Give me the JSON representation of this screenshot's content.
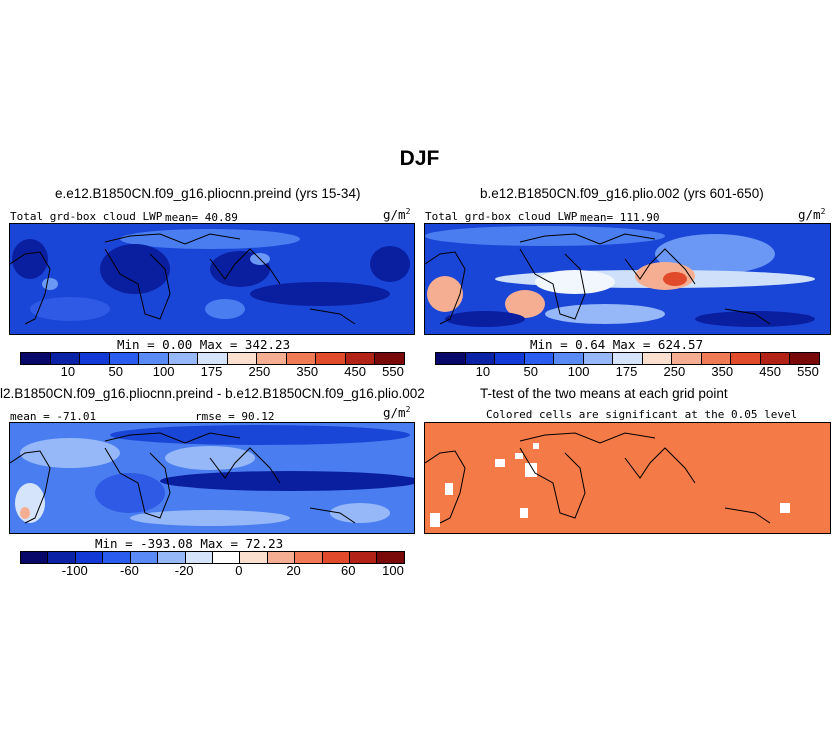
{
  "title": "DJF",
  "panels": {
    "p1": {
      "title": "e.e12.B1850CN.f09_g16.pliocnn.preind (yrs 15-34)",
      "label": "Total grd-box cloud LWP",
      "mean": "mean=  40.89",
      "units": "g/m",
      "units_sup": "2",
      "minmax": "Min =   0.00 Max = 342.23"
    },
    "p2": {
      "title": "b.e12.B1850CN.f09_g16.plio.002 (yrs 601-650)",
      "label": "Total grd-box cloud LWP",
      "mean": "mean= 111.90",
      "units": "g/m",
      "units_sup": "2",
      "minmax": "Min =   0.64 Max = 624.57"
    },
    "p3": {
      "title": "l2.B1850CN.f09_g16.pliocnn.preind - b.e12.B1850CN.f09_g16.plio.002",
      "mean": "mean = -71.01",
      "rmse": "rmse =  90.12",
      "units": "g/m",
      "units_sup": "2",
      "minmax": "Min = -393.08 Max =  72.23"
    },
    "p4": {
      "title": "T-test of the two means at each grid point",
      "subtitle": "Colored cells are significant at the 0.05 level"
    }
  },
  "colorbars": {
    "abs": {
      "colors": [
        "#08086b",
        "#0a22a5",
        "#1238d6",
        "#2a5cf0",
        "#5a8af5",
        "#96b8f8",
        "#d5e4fb",
        "#fbe0d0",
        "#f6ae92",
        "#f07a56",
        "#e14a2a",
        "#b32216",
        "#7a0a0a"
      ],
      "ticks": [
        "10",
        "50",
        "100",
        "175",
        "250",
        "350",
        "450",
        "550"
      ]
    },
    "diff": {
      "colors": [
        "#08086b",
        "#0a22a5",
        "#1238d6",
        "#2a5cf0",
        "#5a8af5",
        "#96b8f8",
        "#d5e4fb",
        "#ffffff",
        "#fbe0d0",
        "#f6ae92",
        "#f07a56",
        "#e14a2a",
        "#b32216",
        "#7a0a0a"
      ],
      "ticks": [
        "-100",
        "-60",
        "-20",
        "0",
        "20",
        "60",
        "100"
      ]
    }
  },
  "colors": {
    "field_dark": "#0a1ea0",
    "field_mid": "#1a46d8",
    "field_light": "#4a7ef0",
    "ttest": "#f47a48"
  }
}
